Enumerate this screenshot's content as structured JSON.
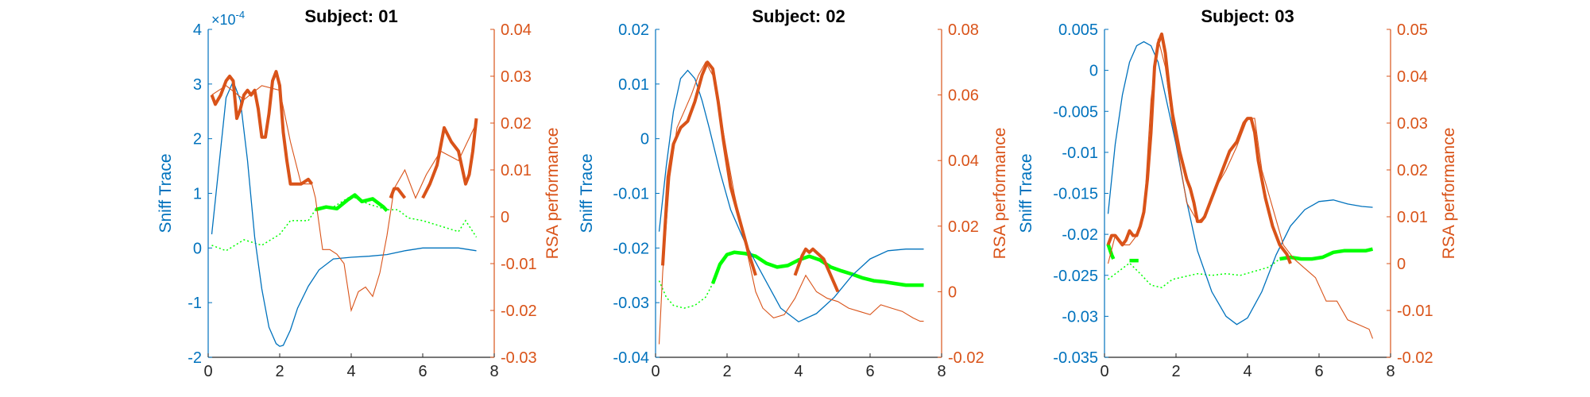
{
  "colors": {
    "blue": "#0072bd",
    "orange": "#d95319",
    "green": "#00ff00",
    "axis": "#262626"
  },
  "chart_data": [
    {
      "type": "line",
      "title": "Subject: 01",
      "xlim": [
        0,
        8
      ],
      "x_ticks": [
        "0",
        "2",
        "4",
        "6",
        "8"
      ],
      "left_axis": {
        "label": "Sniff Trace",
        "ylim": [
          -2,
          4
        ],
        "ticks": [
          "-2",
          "-1",
          "0",
          "1",
          "2",
          "3",
          "4"
        ],
        "exponent_base": "×10",
        "exponent": "-4"
      },
      "right_axis": {
        "label": "RSA performance",
        "ylim": [
          -0.03,
          0.04
        ],
        "ticks": [
          "-0.03",
          "-0.02",
          "-0.01",
          "0",
          "0.01",
          "0.02",
          "0.03",
          "0.04"
        ]
      },
      "sniff_trace": {
        "axis": "left",
        "x": [
          0.1,
          0.3,
          0.5,
          0.7,
          0.9,
          1.1,
          1.3,
          1.5,
          1.7,
          1.9,
          2.0,
          2.1,
          2.3,
          2.5,
          2.8,
          3.1,
          3.5,
          4.0,
          4.5,
          5.0,
          5.5,
          6.0,
          6.5,
          7.0,
          7.5
        ],
        "y": [
          0.25,
          1.5,
          2.75,
          3.05,
          2.7,
          1.6,
          0.2,
          -0.75,
          -1.45,
          -1.75,
          -1.8,
          -1.78,
          -1.5,
          -1.1,
          -0.7,
          -0.4,
          -0.2,
          -0.17,
          -0.15,
          -0.12,
          -0.05,
          0.0,
          0.0,
          0.0,
          -0.05
        ]
      },
      "rsa_thin": {
        "axis": "right",
        "x": [
          0.1,
          0.5,
          1.0,
          1.5,
          2.0,
          2.3,
          2.6,
          2.9,
          3.0,
          3.2,
          3.4,
          3.6,
          3.8,
          3.9,
          4.0,
          4.2,
          4.4,
          4.6,
          4.8,
          5.0,
          5.2,
          5.5,
          5.8,
          6.1,
          6.5,
          7.0,
          7.5
        ],
        "y": [
          0.026,
          0.028,
          0.025,
          0.028,
          0.027,
          0.016,
          0.007,
          0.007,
          0.004,
          -0.007,
          -0.007,
          -0.008,
          -0.01,
          -0.015,
          -0.02,
          -0.016,
          -0.015,
          -0.017,
          -0.012,
          -0.004,
          0.006,
          0.01,
          0.004,
          0.009,
          0.014,
          0.012,
          0.02
        ]
      },
      "rsa_significant": {
        "axis": "right",
        "segments": [
          {
            "x": [
              0.1,
              0.2,
              0.35,
              0.5,
              0.6,
              0.7,
              0.8,
              0.9,
              1.0,
              1.1,
              1.2,
              1.3,
              1.4,
              1.5,
              1.6,
              1.7,
              1.8,
              1.9,
              2.0,
              2.1,
              2.2,
              2.3,
              2.45,
              2.6,
              2.8,
              2.9
            ],
            "y": [
              0.026,
              0.024,
              0.026,
              0.029,
              0.03,
              0.029,
              0.021,
              0.023,
              0.026,
              0.027,
              0.026,
              0.027,
              0.023,
              0.017,
              0.017,
              0.022,
              0.029,
              0.031,
              0.028,
              0.018,
              0.012,
              0.007,
              0.007,
              0.007,
              0.008,
              0.007
            ]
          },
          {
            "x": [
              5.1,
              5.2,
              5.3,
              5.4,
              5.5
            ],
            "y": [
              0.004,
              0.006,
              0.006,
              0.005,
              0.004
            ]
          },
          {
            "x": [
              6.0,
              6.2,
              6.4,
              6.6,
              6.8,
              7.0,
              7.2,
              7.3,
              7.4,
              7.5
            ],
            "y": [
              0.004,
              0.007,
              0.011,
              0.019,
              0.016,
              0.014,
              0.007,
              0.009,
              0.014,
              0.021
            ]
          }
        ]
      },
      "green_dotted": {
        "axis": "left",
        "x": [
          0.1,
          0.5,
          1.0,
          1.5,
          2.0,
          2.3,
          2.6,
          2.8,
          3.0,
          3.5,
          4.0,
          4.5,
          5.0,
          5.3,
          5.6,
          6.0,
          6.5,
          7.0,
          7.2,
          7.5
        ],
        "y": [
          0.05,
          -0.05,
          0.15,
          0.05,
          0.25,
          0.5,
          0.5,
          0.5,
          0.7,
          0.75,
          0.95,
          0.8,
          0.7,
          0.7,
          0.55,
          0.5,
          0.4,
          0.3,
          0.5,
          0.2
        ]
      },
      "green_significant": {
        "axis": "left",
        "segments": [
          {
            "x": [
              3.0,
              3.3,
              3.6,
              3.9,
              4.1,
              4.3,
              4.6,
              4.9,
              5.0
            ],
            "y": [
              0.7,
              0.75,
              0.72,
              0.88,
              0.97,
              0.85,
              0.9,
              0.75,
              0.68
            ]
          }
        ]
      }
    },
    {
      "type": "line",
      "title": "Subject: 02",
      "xlim": [
        0,
        8
      ],
      "x_ticks": [
        "0",
        "2",
        "4",
        "6",
        "8"
      ],
      "left_axis": {
        "label": "Sniff Trace",
        "ylim": [
          -0.04,
          0.02
        ],
        "ticks": [
          "-0.04",
          "-0.03",
          "-0.02",
          "-0.01",
          "0",
          "0.01",
          "0.02"
        ]
      },
      "right_axis": {
        "label": "RSA performance",
        "ylim": [
          -0.02,
          0.08
        ],
        "ticks": [
          "-0.02",
          "0",
          "0.02",
          "0.04",
          "0.06",
          "0.08"
        ]
      },
      "sniff_trace": {
        "axis": "left",
        "x": [
          0.1,
          0.3,
          0.5,
          0.7,
          0.9,
          1.1,
          1.3,
          1.5,
          1.8,
          2.1,
          2.5,
          3.0,
          3.5,
          4.0,
          4.5,
          5.0,
          5.5,
          6.0,
          6.5,
          7.0,
          7.5
        ],
        "y": [
          -0.017,
          -0.005,
          0.005,
          0.011,
          0.0125,
          0.011,
          0.007,
          0.002,
          -0.006,
          -0.013,
          -0.019,
          -0.025,
          -0.031,
          -0.0335,
          -0.032,
          -0.029,
          -0.025,
          -0.022,
          -0.0205,
          -0.0202,
          -0.0202
        ]
      },
      "rsa_thin": {
        "axis": "right",
        "x": [
          0.1,
          0.2,
          0.4,
          0.6,
          0.8,
          1.0,
          1.2,
          1.4,
          1.6,
          1.8,
          2.0,
          2.2,
          2.4,
          2.6,
          2.8,
          3.0,
          3.3,
          3.6,
          3.9,
          4.2,
          4.5,
          4.8,
          5.1,
          5.4,
          5.7,
          6.0,
          6.3,
          6.6,
          6.9,
          7.2,
          7.4,
          7.5
        ],
        "y": [
          -0.016,
          0.006,
          0.035,
          0.05,
          0.055,
          0.06,
          0.066,
          0.07,
          0.066,
          0.055,
          0.042,
          0.03,
          0.02,
          0.01,
          0.0,
          -0.005,
          -0.008,
          -0.007,
          -0.002,
          0.005,
          0.0,
          -0.002,
          -0.003,
          -0.005,
          -0.006,
          -0.007,
          -0.004,
          -0.005,
          -0.006,
          -0.008,
          -0.009,
          -0.009
        ]
      },
      "rsa_significant": {
        "axis": "right",
        "segments": [
          {
            "x": [
              0.2,
              0.35,
              0.5,
              0.7,
              0.9,
              1.1,
              1.3,
              1.45,
              1.6,
              1.75,
              1.9,
              2.1,
              2.4,
              2.6,
              2.8
            ],
            "y": [
              0.008,
              0.035,
              0.045,
              0.05,
              0.052,
              0.058,
              0.066,
              0.07,
              0.068,
              0.058,
              0.046,
              0.032,
              0.02,
              0.012,
              0.005
            ]
          },
          {
            "x": [
              3.9,
              4.0,
              4.1,
              4.2,
              4.3,
              4.4,
              4.5,
              4.7,
              4.9,
              5.1
            ],
            "y": [
              0.005,
              0.008,
              0.011,
              0.013,
              0.012,
              0.013,
              0.012,
              0.01,
              0.005,
              0.0
            ]
          }
        ]
      },
      "green_dotted": {
        "axis": "left",
        "x": [
          0.1,
          0.3,
          0.5,
          0.8,
          1.1,
          1.4,
          1.6
        ],
        "y": [
          -0.026,
          -0.029,
          -0.0305,
          -0.031,
          -0.0305,
          -0.029,
          -0.0265
        ]
      },
      "green_significant": {
        "axis": "left",
        "segments": [
          {
            "x": [
              1.6,
              1.8,
              2.0,
              2.2,
              2.5,
              2.8,
              3.1,
              3.4,
              3.7,
              4.0,
              4.3,
              4.6,
              4.9,
              5.2,
              5.5,
              5.8,
              6.1,
              6.4,
              6.7,
              7.0,
              7.3,
              7.5
            ],
            "y": [
              -0.0265,
              -0.023,
              -0.0212,
              -0.0208,
              -0.021,
              -0.0215,
              -0.0228,
              -0.0235,
              -0.0232,
              -0.0222,
              -0.0215,
              -0.0222,
              -0.0235,
              -0.0242,
              -0.0248,
              -0.0255,
              -0.026,
              -0.0262,
              -0.0265,
              -0.0268,
              -0.0268,
              -0.0268
            ]
          }
        ]
      }
    },
    {
      "type": "line",
      "title": "Subject: 03",
      "xlim": [
        0,
        8
      ],
      "x_ticks": [
        "0",
        "2",
        "4",
        "6",
        "8"
      ],
      "left_axis": {
        "label": "Sniff Trace",
        "ylim": [
          -0.035,
          0.005
        ],
        "ticks": [
          "-0.035",
          "-0.03",
          "-0.025",
          "-0.02",
          "-0.015",
          "-0.01",
          "-0.005",
          "0",
          "0.005"
        ]
      },
      "right_axis": {
        "label": "RSA performance",
        "ylim": [
          -0.02,
          0.05
        ],
        "ticks": [
          "-0.02",
          "-0.01",
          "0",
          "0.01",
          "0.02",
          "0.03",
          "0.04",
          "0.05"
        ]
      },
      "sniff_trace": {
        "axis": "left",
        "x": [
          0.1,
          0.3,
          0.5,
          0.7,
          0.9,
          1.1,
          1.3,
          1.5,
          1.7,
          2.0,
          2.3,
          2.6,
          3.0,
          3.4,
          3.7,
          4.0,
          4.4,
          4.8,
          5.2,
          5.6,
          6.0,
          6.4,
          6.8,
          7.2,
          7.5
        ],
        "y": [
          -0.0175,
          -0.009,
          -0.003,
          0.001,
          0.003,
          0.0035,
          0.003,
          0.001,
          -0.003,
          -0.009,
          -0.016,
          -0.022,
          -0.027,
          -0.03,
          -0.031,
          -0.0302,
          -0.027,
          -0.0225,
          -0.019,
          -0.017,
          -0.016,
          -0.0158,
          -0.0163,
          -0.0166,
          -0.0167
        ]
      },
      "rsa_thin": {
        "axis": "right",
        "x": [
          0.1,
          0.3,
          0.5,
          0.7,
          0.9,
          1.1,
          1.3,
          1.5,
          1.7,
          1.9,
          2.1,
          2.3,
          2.6,
          2.8,
          3.1,
          3.4,
          3.7,
          4.0,
          4.2,
          4.4,
          4.7,
          5.0,
          5.3,
          5.6,
          5.9,
          6.2,
          6.5,
          6.8,
          7.1,
          7.4,
          7.5
        ],
        "y": [
          0.0,
          0.006,
          0.004,
          0.004,
          0.006,
          0.01,
          0.035,
          0.048,
          0.042,
          0.03,
          0.022,
          0.013,
          0.009,
          0.01,
          0.016,
          0.02,
          0.025,
          0.031,
          0.031,
          0.02,
          0.012,
          0.004,
          0.001,
          -0.001,
          -0.003,
          -0.008,
          -0.008,
          -0.012,
          -0.013,
          -0.014,
          -0.016
        ]
      },
      "rsa_significant": {
        "axis": "right",
        "segments": [
          {
            "x": [
              0.1,
              0.2,
              0.3,
              0.4,
              0.5,
              0.6,
              0.7,
              0.8,
              0.9,
              1.0,
              1.1,
              1.2,
              1.3,
              1.4,
              1.5,
              1.6,
              1.7,
              1.8,
              1.9,
              2.0,
              2.1,
              2.2,
              2.3,
              2.4,
              2.5,
              2.6,
              2.7,
              2.8,
              2.9,
              3.0,
              3.1,
              3.2,
              3.3,
              3.4,
              3.5,
              3.6,
              3.7,
              3.8,
              3.9,
              4.0,
              4.1,
              4.2,
              4.3,
              4.4,
              4.5,
              4.6,
              4.7,
              4.8,
              4.9,
              5.0,
              5.1,
              5.2
            ],
            "y": [
              0.004,
              0.006,
              0.006,
              0.005,
              0.004,
              0.005,
              0.007,
              0.006,
              0.006,
              0.008,
              0.011,
              0.018,
              0.028,
              0.042,
              0.047,
              0.049,
              0.045,
              0.038,
              0.032,
              0.028,
              0.024,
              0.021,
              0.018,
              0.016,
              0.013,
              0.009,
              0.009,
              0.01,
              0.012,
              0.014,
              0.016,
              0.018,
              0.02,
              0.022,
              0.024,
              0.025,
              0.026,
              0.028,
              0.03,
              0.031,
              0.031,
              0.028,
              0.022,
              0.018,
              0.014,
              0.011,
              0.008,
              0.006,
              0.004,
              0.003,
              0.002,
              0.0
            ]
          }
        ]
      },
      "green_dotted": {
        "axis": "left",
        "x": [
          0.1,
          0.4,
          0.7,
          1.0,
          1.3,
          1.6,
          1.9,
          2.2,
          2.6,
          3.0,
          3.4,
          3.8,
          4.2,
          4.6,
          4.9
        ],
        "y": [
          -0.0255,
          -0.0245,
          -0.0235,
          -0.0248,
          -0.0262,
          -0.0265,
          -0.0255,
          -0.0252,
          -0.0248,
          -0.025,
          -0.0248,
          -0.025,
          -0.0245,
          -0.024,
          -0.023
        ]
      },
      "green_significant": {
        "axis": "left",
        "segments": [
          {
            "x": [
              0.1,
              0.2,
              0.25
            ],
            "y": [
              -0.0212,
              -0.0225,
              -0.023
            ]
          },
          {
            "x": [
              0.7,
              0.8,
              0.95
            ],
            "y": [
              -0.0232,
              -0.0232,
              -0.0232
            ]
          },
          {
            "x": [
              4.9,
              5.2,
              5.5,
              5.8,
              6.1,
              6.4,
              6.7,
              7.0,
              7.3,
              7.5
            ],
            "y": [
              -0.023,
              -0.0228,
              -0.023,
              -0.023,
              -0.0228,
              -0.0222,
              -0.022,
              -0.022,
              -0.022,
              -0.0218
            ]
          }
        ]
      }
    }
  ]
}
